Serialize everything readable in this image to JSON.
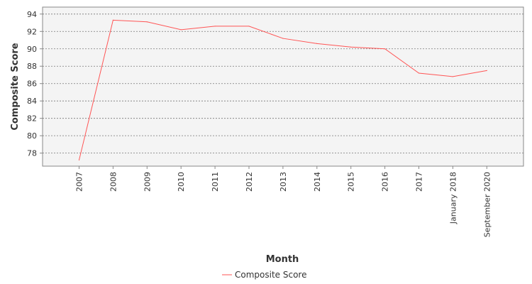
{
  "chart_data": {
    "type": "line",
    "title": "",
    "xlabel": "Month",
    "ylabel": "Composite Score",
    "categories": [
      "2007",
      "2008",
      "2009",
      "2010",
      "2011",
      "2012",
      "2013",
      "2014",
      "2015",
      "2016",
      "2017",
      "January 2018",
      "September 2020"
    ],
    "series": [
      {
        "name": "Composite Score",
        "color": "#ff5555",
        "values": [
          77.2,
          93.3,
          93.1,
          92.2,
          92.6,
          92.6,
          91.2,
          90.6,
          90.2,
          90.0,
          87.2,
          86.8,
          87.5
        ]
      }
    ],
    "ylim": [
      76.5,
      94.8
    ],
    "yticks": [
      78,
      80,
      82,
      84,
      86,
      88,
      90,
      92,
      94
    ],
    "grid": true,
    "legend_position": "bottom-center"
  }
}
